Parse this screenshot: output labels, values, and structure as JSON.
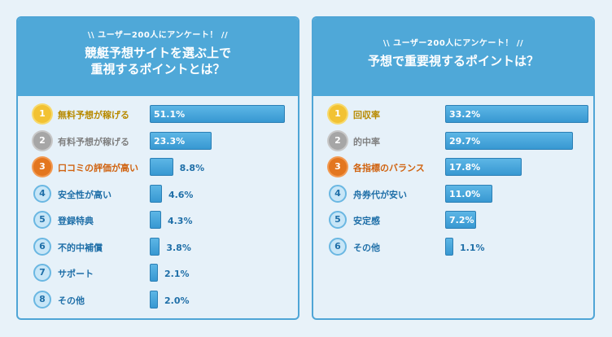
{
  "left_panel": {
    "subtitle": "\\\\ ユーザー200人にアンケート！ //",
    "title_lines": [
      "競艇予想サイトを選ぶ上で",
      "重視するポイントとは？"
    ],
    "items": [
      {
        "rank": "1",
        "label": "無料予想が稼げる",
        "value": 51.1,
        "value_label": "51.1%",
        "style": "gold"
      },
      {
        "rank": "2",
        "label": "有料予想が稼げる",
        "value": 23.3,
        "value_label": "23.3%",
        "style": "silver"
      },
      {
        "rank": "3",
        "label": "口コミの評価が高い",
        "value": 8.8,
        "value_label": "8.8%",
        "style": "bronze"
      },
      {
        "rank": "4",
        "label": "安全性が高い",
        "value": 4.6,
        "value_label": "4.6%",
        "style": "plain"
      },
      {
        "rank": "5",
        "label": "登録特典",
        "value": 4.3,
        "value_label": "4.3%",
        "style": "plain"
      },
      {
        "rank": "6",
        "label": "不的中補償",
        "value": 3.8,
        "value_label": "3.8%",
        "style": "plain"
      },
      {
        "rank": "7",
        "label": "サポート",
        "value": 2.1,
        "value_label": "2.1%",
        "style": "plain"
      },
      {
        "rank": "8",
        "label": "その他",
        "value": 2.0,
        "value_label": "2.0%",
        "style": "plain"
      }
    ]
  },
  "right_panel": {
    "subtitle": "\\\\ ユーザー200人にアンケート！ //",
    "title_lines": [
      "予想で重要視するポイントは？"
    ],
    "items": [
      {
        "rank": "1",
        "label": "回収率",
        "value": 33.2,
        "value_label": "33.2%",
        "style": "gold"
      },
      {
        "rank": "2",
        "label": "的中率",
        "value": 29.7,
        "value_label": "29.7%",
        "style": "silver"
      },
      {
        "rank": "3",
        "label": "各指標のバランス",
        "value": 17.8,
        "value_label": "17.8%",
        "style": "bronze"
      },
      {
        "rank": "4",
        "label": "舟券代が安い",
        "value": 11.0,
        "value_label": "11.0%",
        "style": "plain"
      },
      {
        "rank": "5",
        "label": "安定感",
        "value": 7.2,
        "value_label": "7.2%",
        "style": "plain"
      },
      {
        "rank": "6",
        "label": "その他",
        "value": 1.1,
        "value_label": "1.1%",
        "style": "plain"
      }
    ]
  },
  "colors": {
    "header": "#4fa8d8",
    "bar": "#3798d2",
    "gold": "#f2c233",
    "silver": "#a6a6a6",
    "bronze": "#e3761f",
    "text_blue": "#1f6fa8"
  }
}
